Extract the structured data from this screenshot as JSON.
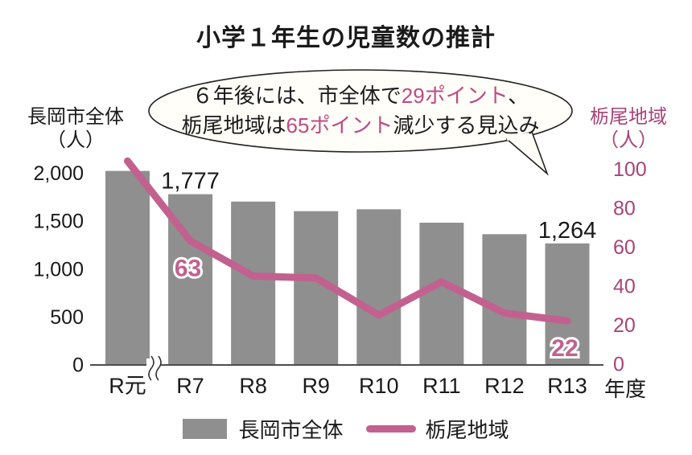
{
  "title": "小学１年生の児童数の推計",
  "callout": {
    "line1_pre": "６年後には、市全体で",
    "line1_highlight": "29ポイント",
    "line1_post": "、",
    "line2_pre": "栃尾地域は",
    "line2_highlight": "65ポイント",
    "line2_post": "減少する見込み"
  },
  "axes": {
    "left_title": "長岡市全体",
    "left_unit": "（人）",
    "right_title": "栃尾地域",
    "right_unit": "（人）",
    "x_unit": "年度"
  },
  "legend": [
    {
      "type": "bar",
      "label": "長岡市全体",
      "color": "#8f8f8f"
    },
    {
      "type": "line",
      "label": "栃尾地域",
      "color": "#c2618f"
    }
  ],
  "colors": {
    "bar": "#8f8f8f",
    "line": "#c2618f",
    "right_axis_text": "#a84378",
    "highlight": "#c04a85",
    "text": "#1a1a1a",
    "axis_line": "#4d4d4d"
  },
  "chart_data": {
    "type": "bar+line combo",
    "title": "小学１年生の児童数の推計",
    "categories": [
      "R元",
      "R7",
      "R8",
      "R9",
      "R10",
      "R11",
      "R12",
      "R13"
    ],
    "x_axis_break_after_first": true,
    "series": [
      {
        "name": "長岡市全体",
        "type": "bar",
        "axis": "left",
        "color": "#8f8f8f",
        "values": [
          2020,
          1777,
          1700,
          1600,
          1620,
          1480,
          1360,
          1264
        ],
        "labels": [
          null,
          "1,777",
          null,
          null,
          null,
          null,
          null,
          "1,264"
        ]
      },
      {
        "name": "栃尾地域",
        "type": "line",
        "axis": "right",
        "color": "#c2618f",
        "values": [
          104,
          63,
          45,
          44,
          25,
          42,
          26,
          22
        ],
        "labels": [
          null,
          "63",
          null,
          null,
          null,
          null,
          null,
          "22"
        ]
      }
    ],
    "left_axis": {
      "title": "長岡市全体（人）",
      "range": [
        0,
        2000
      ],
      "ticks": [
        {
          "v": 0,
          "label": "0"
        },
        {
          "v": 500,
          "label": "500"
        },
        {
          "v": 1000,
          "label": "1,000"
        },
        {
          "v": 1500,
          "label": "1,500"
        },
        {
          "v": 2000,
          "label": "2,000"
        }
      ]
    },
    "right_axis": {
      "title": "栃尾地域（人）",
      "range": [
        0,
        100
      ],
      "ticks": [
        {
          "v": 0,
          "label": "0"
        },
        {
          "v": 20,
          "label": "20"
        },
        {
          "v": 40,
          "label": "40"
        },
        {
          "v": 60,
          "label": "60"
        },
        {
          "v": 80,
          "label": "80"
        },
        {
          "v": 100,
          "label": "100"
        }
      ]
    },
    "annotation": "６年後には、市全体で29ポイント、栃尾地域は65ポイント減少する見込み",
    "legend_position": "bottom"
  }
}
